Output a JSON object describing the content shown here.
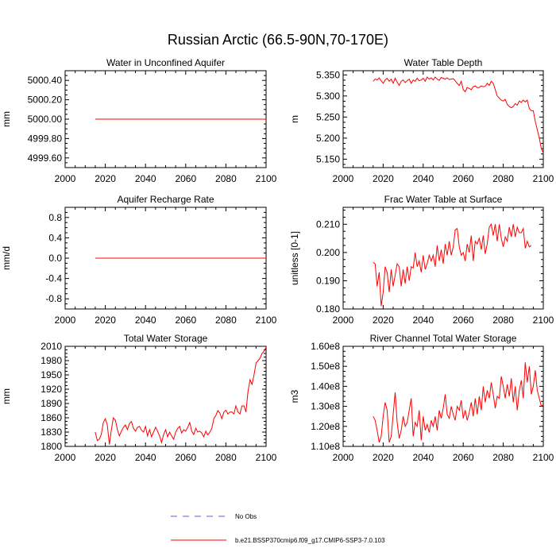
{
  "title": "Russian Arctic (66.5-90N,70-170E)",
  "colors": {
    "model": "#ff0000",
    "obs": "#6a5acd",
    "axis": "#000000"
  },
  "legend": {
    "obs_label": "No Obs",
    "model_label": "b.e21.BSSP370cmip6.f09_g17.CMIP6-SSP3-7.0.103"
  },
  "chart_data": [
    {
      "type": "line",
      "title": "Water in Unconfined Aquifer",
      "xlabel": "",
      "ylabel": "mm",
      "xlim": [
        2000,
        2100
      ],
      "ylim": [
        4999.5,
        5000.5
      ],
      "xticks": [
        "2000",
        "2020",
        "2040",
        "2060",
        "2080",
        "2100"
      ],
      "yticks": [
        {
          "v": 4999.6,
          "label": "4999.60"
        },
        {
          "v": 4999.8,
          "label": "4999.80"
        },
        {
          "v": 5000.0,
          "label": "5000.00"
        },
        {
          "v": 5000.2,
          "label": "5000.20"
        },
        {
          "v": 5000.4,
          "label": "5000.40"
        }
      ],
      "series": [
        {
          "name": "b.e21.BSSP370cmip6.f09_g17.CMIP6-SSP3-7.0.103",
          "x_start": 2015,
          "values": [
            5000,
            5000,
            5000,
            5000,
            5000,
            5000,
            5000,
            5000,
            5000,
            5000,
            5000,
            5000,
            5000,
            5000,
            5000,
            5000,
            5000,
            5000,
            5000,
            5000,
            5000,
            5000,
            5000,
            5000,
            5000,
            5000,
            5000,
            5000,
            5000,
            5000,
            5000,
            5000,
            5000,
            5000,
            5000,
            5000,
            5000,
            5000,
            5000,
            5000,
            5000,
            5000,
            5000,
            5000,
            5000,
            5000,
            5000,
            5000,
            5000,
            5000,
            5000,
            5000,
            5000,
            5000,
            5000,
            5000,
            5000,
            5000,
            5000,
            5000,
            5000,
            5000,
            5000,
            5000,
            5000,
            5000,
            5000,
            5000,
            5000,
            5000,
            5000,
            5000,
            5000,
            5000,
            5000,
            5000,
            5000,
            5000,
            5000,
            5000,
            5000,
            5000,
            5000,
            5000,
            5000,
            5000
          ]
        }
      ]
    },
    {
      "type": "line",
      "title": "Water Table Depth",
      "xlabel": "",
      "ylabel": "m",
      "xlim": [
        2000,
        2100
      ],
      "ylim": [
        5.13,
        5.36
      ],
      "xticks": [
        "2000",
        "2020",
        "2040",
        "2060",
        "2080",
        "2100"
      ],
      "yticks": [
        {
          "v": 5.15,
          "label": "5.150"
        },
        {
          "v": 5.2,
          "label": "5.200"
        },
        {
          "v": 5.25,
          "label": "5.250"
        },
        {
          "v": 5.3,
          "label": "5.300"
        },
        {
          "v": 5.35,
          "label": "5.350"
        }
      ],
      "series": [
        {
          "name": "b.e21.BSSP370cmip6.f09_g17.CMIP6-SSP3-7.0.103",
          "x_start": 2015,
          "values": [
            5.335,
            5.34,
            5.338,
            5.343,
            5.336,
            5.33,
            5.338,
            5.342,
            5.335,
            5.34,
            5.33,
            5.342,
            5.333,
            5.325,
            5.335,
            5.338,
            5.332,
            5.336,
            5.34,
            5.33,
            5.338,
            5.335,
            5.342,
            5.336,
            5.338,
            5.342,
            5.335,
            5.345,
            5.34,
            5.343,
            5.338,
            5.345,
            5.34,
            5.337,
            5.344,
            5.342,
            5.34,
            5.343,
            5.339,
            5.34,
            5.341,
            5.336,
            5.33,
            5.325,
            5.335,
            5.315,
            5.31,
            5.32,
            5.318,
            5.315,
            5.322,
            5.324,
            5.32,
            5.32,
            5.324,
            5.322,
            5.323,
            5.33,
            5.325,
            5.335,
            5.33,
            5.315,
            5.3,
            5.295,
            5.29,
            5.288,
            5.292,
            5.28,
            5.275,
            5.272,
            5.275,
            5.282,
            5.278,
            5.288,
            5.285,
            5.29,
            5.286,
            5.29,
            5.27,
            5.265,
            5.265,
            5.24,
            5.22,
            5.2,
            5.175,
            5.165
          ]
        }
      ]
    },
    {
      "type": "line",
      "title": "Aquifer Recharge Rate",
      "xlabel": "",
      "ylabel": "mm/d",
      "xlim": [
        2000,
        2100
      ],
      "ylim": [
        -1.0,
        1.0
      ],
      "xticks": [
        "2000",
        "2020",
        "2040",
        "2060",
        "2080",
        "2100"
      ],
      "yticks": [
        {
          "v": -0.8,
          "label": "-0.8"
        },
        {
          "v": -0.4,
          "label": "-0.4"
        },
        {
          "v": 0.0,
          "label": "0.0"
        },
        {
          "v": 0.4,
          "label": "0.4"
        },
        {
          "v": 0.8,
          "label": "0.8"
        }
      ],
      "series": [
        {
          "name": "b.e21.BSSP370cmip6.f09_g17.CMIP6-SSP3-7.0.103",
          "x_start": 2015,
          "values": [
            0,
            0,
            0,
            0,
            0,
            0,
            0,
            0,
            0,
            0,
            0,
            0,
            0,
            0,
            0,
            0,
            0,
            0,
            0,
            0,
            0,
            0,
            0,
            0,
            0,
            0,
            0,
            0,
            0,
            0,
            0,
            0,
            0,
            0,
            0,
            0,
            0,
            0,
            0,
            0,
            0,
            0,
            0,
            0,
            0,
            0,
            0,
            0,
            0,
            0,
            0,
            0,
            0,
            0,
            0,
            0,
            0,
            0,
            0,
            0,
            0,
            0,
            0,
            0,
            0,
            0,
            0,
            0,
            0,
            0,
            0,
            0,
            0,
            0,
            0,
            0,
            0,
            0,
            0,
            0,
            0,
            0,
            0,
            0,
            0,
            0
          ]
        }
      ]
    },
    {
      "type": "line",
      "title": "Frac Water Table at Surface",
      "xlabel": "",
      "ylabel": "unitless [0-1]",
      "xlim": [
        2000,
        2100
      ],
      "ylim": [
        0.18,
        0.216
      ],
      "xticks": [
        "2000",
        "2020",
        "2040",
        "2060",
        "2080",
        "2100"
      ],
      "yticks": [
        {
          "v": 0.18,
          "label": "0.180"
        },
        {
          "v": 0.19,
          "label": "0.190"
        },
        {
          "v": 0.2,
          "label": "0.200"
        },
        {
          "v": 0.21,
          "label": "0.210"
        }
      ],
      "series": [
        {
          "name": "b.e21.BSSP370cmip6.f09_g17.CMIP6-SSP3-7.0.103",
          "x_start": 2015,
          "values": [
            0.1965,
            0.196,
            0.188,
            0.193,
            0.181,
            0.186,
            0.195,
            0.193,
            0.186,
            0.194,
            0.188,
            0.192,
            0.196,
            0.195,
            0.188,
            0.194,
            0.189,
            0.195,
            0.19,
            0.195,
            0.1945,
            0.2,
            0.195,
            0.197,
            0.193,
            0.199,
            0.194,
            0.196,
            0.199,
            0.197,
            0.199,
            0.195,
            0.2025,
            0.197,
            0.201,
            0.196,
            0.203,
            0.199,
            0.204,
            0.199,
            0.202,
            0.208,
            0.2085,
            0.202,
            0.199,
            0.2,
            0.197,
            0.203,
            0.2,
            0.206,
            0.197,
            0.204,
            0.203,
            0.205,
            0.201,
            0.206,
            0.1995,
            0.203,
            0.209,
            0.21,
            0.206,
            0.21,
            0.204,
            0.21,
            0.205,
            0.202,
            0.2055,
            0.204,
            0.209,
            0.2055,
            0.21,
            0.2055,
            0.209,
            0.207,
            0.207,
            0.2085,
            0.2015,
            0.204,
            0.202,
            0.2025
          ]
        }
      ]
    },
    {
      "type": "line",
      "title": "Total Water Storage",
      "xlabel": "",
      "ylabel": "mm",
      "xlim": [
        2000,
        2100
      ],
      "ylim": [
        1800,
        2010
      ],
      "xticks": [
        "2000",
        "2020",
        "2040",
        "2060",
        "2080",
        "2100"
      ],
      "yticks": [
        {
          "v": 1800,
          "label": "1800"
        },
        {
          "v": 1830,
          "label": "1830"
        },
        {
          "v": 1860,
          "label": "1860"
        },
        {
          "v": 1890,
          "label": "1890"
        },
        {
          "v": 1920,
          "label": "1920"
        },
        {
          "v": 1950,
          "label": "1950"
        },
        {
          "v": 1980,
          "label": "1980"
        },
        {
          "v": 2010,
          "label": "2010"
        }
      ],
      "series": [
        {
          "name": "b.e21.BSSP370cmip6.f09_g17.CMIP6-SSP3-7.0.103",
          "x_start": 2015,
          "values": [
            1830,
            1812,
            1815,
            1825,
            1850,
            1858,
            1845,
            1804,
            1835,
            1860,
            1855,
            1835,
            1822,
            1832,
            1840,
            1845,
            1835,
            1848,
            1852,
            1838,
            1832,
            1840,
            1842,
            1834,
            1830,
            1842,
            1822,
            1835,
            1820,
            1830,
            1840,
            1832,
            1822,
            1808,
            1825,
            1835,
            1820,
            1830,
            1822,
            1815,
            1830,
            1838,
            1842,
            1828,
            1835,
            1832,
            1840,
            1850,
            1832,
            1825,
            1838,
            1830,
            1832,
            1828,
            1820,
            1832,
            1824,
            1830,
            1838,
            1858,
            1865,
            1875,
            1870,
            1858,
            1872,
            1876,
            1868,
            1872,
            1872,
            1868,
            1885,
            1872,
            1868,
            1885,
            1885,
            1872,
            1915,
            1940,
            1930,
            1950,
            1975,
            1980,
            1985,
            1995,
            2000,
            2008
          ]
        }
      ]
    },
    {
      "type": "line",
      "title": "River Channel Total Water Storage",
      "xlabel": "",
      "ylabel": "m3",
      "xlim": [
        2000,
        2100
      ],
      "ylim": [
        110000000,
        160000000
      ],
      "xticks": [
        "2000",
        "2020",
        "2040",
        "2060",
        "2080",
        "2100"
      ],
      "yticks": [
        {
          "v": 110000000,
          "label": "1.10e8"
        },
        {
          "v": 120000000,
          "label": "1.20e8"
        },
        {
          "v": 130000000,
          "label": "1.30e8"
        },
        {
          "v": 140000000,
          "label": "1.40e8"
        },
        {
          "v": 150000000,
          "label": "1.50e8"
        },
        {
          "v": 160000000,
          "label": "1.60e8"
        }
      ],
      "series": [
        {
          "name": "b.e21.BSSP370cmip6.f09_g17.CMIP6-SSP3-7.0.103",
          "x_start": 2015,
          "values": [
            125000000,
            123000000,
            118000000,
            112000000,
            115000000,
            125000000,
            132000000,
            128000000,
            112000000,
            115000000,
            126000000,
            137000000,
            122000000,
            114000000,
            118000000,
            125000000,
            120000000,
            122000000,
            128000000,
            134000000,
            115000000,
            122000000,
            120000000,
            128000000,
            113000000,
            125000000,
            118000000,
            121000000,
            117000000,
            123000000,
            120000000,
            125000000,
            118000000,
            128000000,
            124000000,
            129000000,
            136000000,
            126000000,
            124000000,
            130000000,
            126000000,
            123000000,
            130000000,
            128000000,
            133000000,
            124000000,
            128000000,
            123000000,
            127000000,
            132000000,
            125000000,
            134000000,
            126000000,
            135000000,
            128000000,
            140000000,
            132000000,
            138000000,
            134000000,
            142000000,
            136000000,
            129000000,
            135000000,
            134000000,
            145000000,
            140000000,
            134000000,
            141000000,
            135000000,
            144000000,
            132000000,
            140000000,
            128000000,
            138000000,
            143000000,
            134000000,
            152000000,
            142000000,
            150000000,
            136000000,
            140000000,
            148000000,
            138000000,
            134000000,
            130000000,
            131000000
          ]
        }
      ]
    }
  ]
}
